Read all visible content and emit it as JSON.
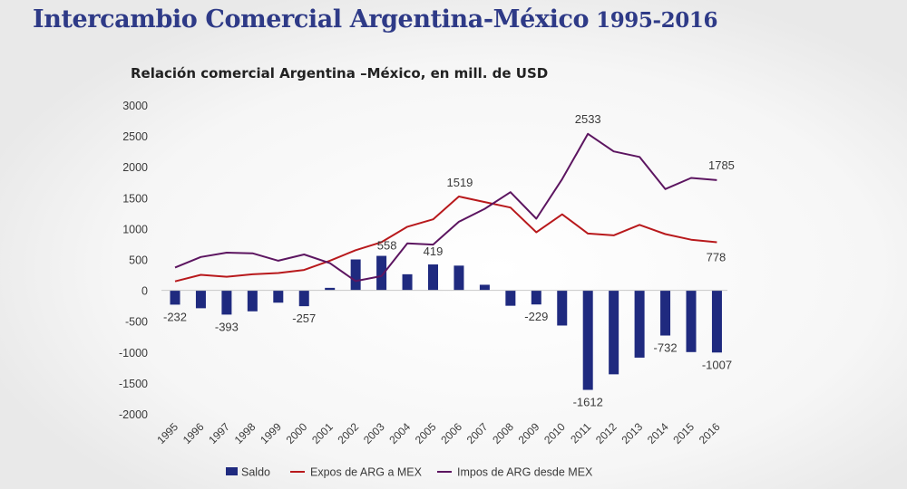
{
  "header": {
    "title": "Intercambio Comercial Argentina-México",
    "years": "1995-2016"
  },
  "chart_data": {
    "type": "bar",
    "title": "Relación comercial Argentina –México, en mill. de USD",
    "xlabel": "",
    "ylabel": "",
    "ylim": [
      -2000,
      3000
    ],
    "ytick_step": 500,
    "grid": false,
    "legend_position": "bottom",
    "categories": [
      "1995",
      "1996",
      "1997",
      "1998",
      "1999",
      "2000",
      "2001",
      "2002",
      "2003",
      "2004",
      "2005",
      "2006",
      "2007",
      "2008",
      "2009",
      "2010",
      "2011",
      "2012",
      "2013",
      "2014",
      "2015",
      "2016"
    ],
    "series": [
      {
        "name": "Saldo",
        "type": "bar",
        "color": "#1f2a7f",
        "values": [
          -232,
          -290,
          -393,
          -340,
          -200,
          -257,
          40,
          500,
          558,
          260,
          419,
          400,
          90,
          -250,
          -229,
          -570,
          -1612,
          -1360,
          -1090,
          -732,
          -1000,
          -1007
        ]
      },
      {
        "name": "Expos de ARG a MEX",
        "type": "line",
        "color": "#b8191c",
        "values": [
          145,
          250,
          220,
          260,
          280,
          330,
          480,
          650,
          780,
          1030,
          1150,
          1519,
          1430,
          1340,
          940,
          1230,
          920,
          890,
          1060,
          910,
          820,
          778
        ]
      },
      {
        "name": "Impos de ARG desde MEX",
        "type": "line",
        "color": "#5c1560",
        "values": [
          370,
          540,
          610,
          600,
          480,
          580,
          440,
          150,
          230,
          760,
          740,
          1110,
          1320,
          1590,
          1160,
          1800,
          2533,
          2250,
          2160,
          1640,
          1820,
          1785
        ]
      }
    ],
    "data_labels": [
      {
        "series": 0,
        "index": 0,
        "text": "-232"
      },
      {
        "series": 0,
        "index": 2,
        "text": "-393"
      },
      {
        "series": 0,
        "index": 5,
        "text": "-257"
      },
      {
        "series": 0,
        "index": 8,
        "text": "558"
      },
      {
        "series": 0,
        "index": 10,
        "text": "419"
      },
      {
        "series": 0,
        "index": 14,
        "text": "-229"
      },
      {
        "series": 0,
        "index": 16,
        "text": "-1612"
      },
      {
        "series": 0,
        "index": 19,
        "text": "-732"
      },
      {
        "series": 0,
        "index": 21,
        "text": "-1007"
      },
      {
        "series": 1,
        "index": 11,
        "text": "1519"
      },
      {
        "series": 1,
        "index": 21,
        "text": "778"
      },
      {
        "series": 2,
        "index": 16,
        "text": "2533"
      },
      {
        "series": 2,
        "index": 21,
        "text": "1785"
      }
    ]
  }
}
